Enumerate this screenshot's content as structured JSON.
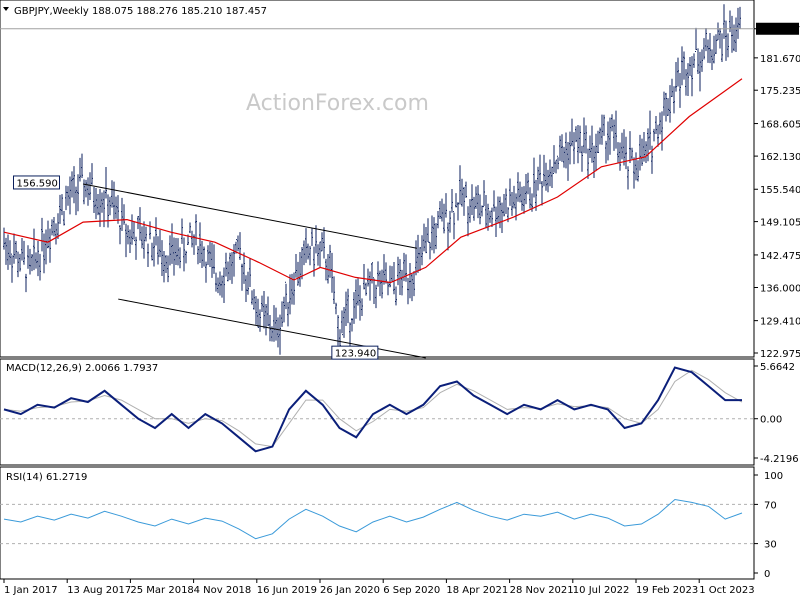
{
  "header": {
    "symbol": "GBPJPY,Weekly",
    "ohlc": "188.075 188.276 185.210 187.457"
  },
  "watermark": "ActionForex.com",
  "colors": {
    "bars": "#0b1f5c",
    "ma": "#e00000",
    "macd": "#0b1f7a",
    "signal": "#b0b0b0",
    "rsi": "#3a9ad9",
    "channel": "#000000",
    "level_line": "#a0a0a0"
  },
  "chart_data": [
    {
      "panel": "price",
      "type": "ohlc",
      "series": [
        {
          "name": "GBPJPY weekly",
          "values_note": "weekly OHLC bars"
        },
        {
          "name": "MA"
        }
      ],
      "ylim": [
        122.975,
        191.3
      ],
      "y_ticks": [
        122.975,
        129.41,
        136.0,
        142.475,
        149.105,
        155.54,
        162.13,
        168.605,
        175.235,
        181.67,
        187.457
      ],
      "y_tick_labels": [
        "122.975",
        "129.410",
        "136.000",
        "142.475",
        "149.105",
        "155.540",
        "162.130",
        "168.605",
        "175.235",
        "181.670",
        "187.457"
      ],
      "current_price": 187.457,
      "annotations": [
        {
          "label": "156.590",
          "x": "2017-08",
          "y": 156.59
        },
        {
          "label": "123.940",
          "x": "2020-03",
          "y": 123.94
        }
      ],
      "price_points": [
        {
          "x": "2017-01",
          "y": 145.0
        },
        {
          "x": "2017-04",
          "y": 139.0
        },
        {
          "x": "2017-06",
          "y": 147.0
        },
        {
          "x": "2017-08",
          "y": 153.0
        },
        {
          "x": "2017-10",
          "y": 156.59
        },
        {
          "x": "2018-01",
          "y": 153.0
        },
        {
          "x": "2018-03",
          "y": 147.0
        },
        {
          "x": "2018-05",
          "y": 146.0
        },
        {
          "x": "2018-08",
          "y": 142.0
        },
        {
          "x": "2018-11",
          "y": 146.0
        },
        {
          "x": "2019-01",
          "y": 138.0
        },
        {
          "x": "2019-04",
          "y": 142.0
        },
        {
          "x": "2019-06",
          "y": 131.0
        },
        {
          "x": "2019-08",
          "y": 127.0
        },
        {
          "x": "2019-10",
          "y": 138.0
        },
        {
          "x": "2019-12",
          "y": 144.0
        },
        {
          "x": "2020-02",
          "y": 141.0
        },
        {
          "x": "2020-03",
          "y": 128.0
        },
        {
          "x": "2020-05",
          "y": 132.0
        },
        {
          "x": "2020-07",
          "y": 137.0
        },
        {
          "x": "2020-09",
          "y": 136.0
        },
        {
          "x": "2020-12",
          "y": 140.0
        },
        {
          "x": "2021-02",
          "y": 147.0
        },
        {
          "x": "2021-05",
          "y": 154.0
        },
        {
          "x": "2021-08",
          "y": 151.0
        },
        {
          "x": "2021-11",
          "y": 153.0
        },
        {
          "x": "2022-01",
          "y": 155.0
        },
        {
          "x": "2022-03",
          "y": 160.0
        },
        {
          "x": "2022-06",
          "y": 165.0
        },
        {
          "x": "2022-08",
          "y": 163.0
        },
        {
          "x": "2022-10",
          "y": 167.0
        },
        {
          "x": "2022-12",
          "y": 160.0
        },
        {
          "x": "2023-02",
          "y": 162.0
        },
        {
          "x": "2023-05",
          "y": 175.0
        },
        {
          "x": "2023-07",
          "y": 181.0
        },
        {
          "x": "2023-09",
          "y": 183.0
        },
        {
          "x": "2023-11",
          "y": 186.0
        },
        {
          "x": "2024-01",
          "y": 187.457
        }
      ],
      "ma_points": [
        {
          "x": "2017-01",
          "y": 147.0
        },
        {
          "x": "2017-06",
          "y": 145.0
        },
        {
          "x": "2017-10",
          "y": 149.0
        },
        {
          "x": "2018-03",
          "y": 149.5
        },
        {
          "x": "2018-08",
          "y": 147.0
        },
        {
          "x": "2019-01",
          "y": 145.0
        },
        {
          "x": "2019-06",
          "y": 141.0
        },
        {
          "x": "2019-10",
          "y": 137.5
        },
        {
          "x": "2020-01",
          "y": 140.0
        },
        {
          "x": "2020-05",
          "y": 138.0
        },
        {
          "x": "2020-09",
          "y": 137.0
        },
        {
          "x": "2021-01",
          "y": 140.0
        },
        {
          "x": "2021-05",
          "y": 146.0
        },
        {
          "x": "2021-11",
          "y": 150.0
        },
        {
          "x": "2022-04",
          "y": 154.0
        },
        {
          "x": "2022-09",
          "y": 160.0
        },
        {
          "x": "2023-02",
          "y": 162.0
        },
        {
          "x": "2023-07",
          "y": 170.0
        },
        {
          "x": "2023-11",
          "y": 175.0
        },
        {
          "x": "2024-01",
          "y": 177.5
        }
      ],
      "channel_lines": [
        {
          "from": {
            "x": "2017-10",
            "y": 156.59
          },
          "to": {
            "x": "2020-12",
            "y": 143.8
          }
        },
        {
          "from": {
            "x": "2018-02",
            "y": 133.7
          },
          "to": {
            "x": "2021-01",
            "y": 122.0
          }
        }
      ]
    },
    {
      "panel": "macd",
      "type": "line",
      "label": "MACD(12,26,9) 2.0066 1.7937",
      "ylim": [
        -4.2196,
        5.6642
      ],
      "y_tick_labels": [
        "5.6642",
        "0.00",
        "-4.2196"
      ],
      "series": [
        {
          "name": "MACD",
          "values": [
            1,
            0.5,
            1.5,
            1.2,
            2.2,
            1.8,
            3.0,
            1.5,
            0.0,
            -1.0,
            0.5,
            -1.0,
            0.5,
            -0.5,
            -2.0,
            -3.5,
            -3.0,
            1.0,
            3.0,
            1.5,
            -1.0,
            -2.0,
            0.5,
            1.5,
            0.5,
            1.5,
            3.5,
            4.0,
            2.5,
            1.5,
            0.5,
            1.5,
            1.0,
            2.0,
            1.0,
            1.5,
            1.0,
            -1.0,
            -0.5,
            2.0,
            5.5,
            5.0,
            3.5,
            2.0,
            2.0
          ]
        },
        {
          "name": "Signal",
          "values": [
            1,
            0.8,
            1.2,
            1.3,
            1.8,
            1.9,
            2.5,
            2.0,
            1.0,
            0.0,
            0.0,
            -0.5,
            0.0,
            -0.2,
            -1.3,
            -2.7,
            -3.0,
            -0.5,
            2.0,
            2.0,
            0.0,
            -1.3,
            -0.3,
            1.0,
            0.8,
            1.2,
            2.8,
            3.7,
            3.0,
            2.0,
            1.0,
            1.2,
            1.1,
            1.6,
            1.3,
            1.4,
            1.2,
            0.0,
            -0.5,
            1.0,
            4.0,
            5.2,
            4.2,
            2.8,
            1.79
          ]
        }
      ]
    },
    {
      "panel": "rsi",
      "type": "line",
      "label": "RSI(14) 61.2719",
      "ylim": [
        0,
        100
      ],
      "y_tick_labels": [
        "100",
        "70",
        "30",
        "0"
      ],
      "levels": [
        70,
        30
      ],
      "series": [
        {
          "name": "RSI",
          "values": [
            55,
            52,
            58,
            54,
            60,
            56,
            63,
            58,
            52,
            48,
            55,
            50,
            56,
            53,
            45,
            35,
            40,
            55,
            65,
            58,
            48,
            42,
            52,
            58,
            52,
            57,
            65,
            72,
            64,
            58,
            54,
            60,
            58,
            62,
            55,
            60,
            56,
            48,
            50,
            60,
            75,
            72,
            68,
            55,
            61.27
          ]
        }
      ]
    }
  ],
  "x_axis": {
    "labels": [
      "1 Jan 2017",
      "13 Aug 2017",
      "25 Mar 2018",
      "4 Nov 2018",
      "16 Jun 2019",
      "26 Jan 2020",
      "6 Sep 2020",
      "18 Apr 2021",
      "28 Nov 2021",
      "10 Jul 2022",
      "19 Feb 2023",
      "1 Oct 2023"
    ]
  }
}
